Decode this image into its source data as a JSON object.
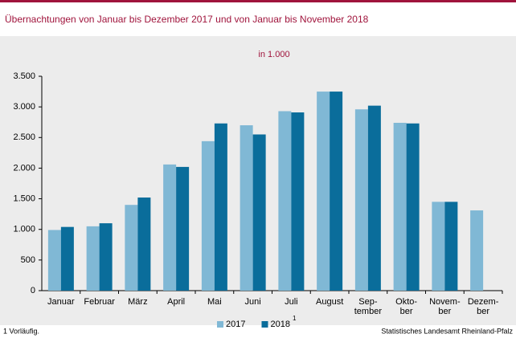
{
  "chart_data": {
    "type": "bar",
    "title": "Übernachtungen  von  Januar bis Dezember  2017  und von  Januar  bis November  2018",
    "subtitle": "in 1.000",
    "categories": [
      [
        "Januar"
      ],
      [
        "Februar"
      ],
      [
        "März"
      ],
      [
        "April"
      ],
      [
        "Mai"
      ],
      [
        "Juni"
      ],
      [
        "Juli"
      ],
      [
        "August"
      ],
      [
        "Sep-",
        "tember"
      ],
      [
        "Okto-",
        "ber"
      ],
      [
        "Novem-",
        "ber"
      ],
      [
        "Dezem-",
        "ber"
      ]
    ],
    "series": [
      {
        "name": "2017",
        "color": "#80b8d5",
        "values": [
          990,
          1050,
          1400,
          2060,
          2440,
          2700,
          2930,
          3250,
          2960,
          2740,
          1450,
          1310
        ]
      },
      {
        "name": "2018",
        "name_footnote": "1",
        "color": "#0a6d9b",
        "values": [
          1040,
          1100,
          1520,
          2020,
          2730,
          2550,
          2910,
          3250,
          3020,
          2730,
          1450,
          null
        ]
      }
    ],
    "ylim": [
      0,
      3500
    ],
    "yticks": [
      0,
      500,
      {
        "value": 1000,
        "label": "1.000"
      },
      {
        "value": 1500,
        "label": "1.500"
      },
      {
        "value": 2000,
        "label": "2.000"
      },
      {
        "value": 2500,
        "label": "2.500"
      },
      {
        "value": 3000,
        "label": "3.000"
      },
      {
        "value": 3500,
        "label": "3.500"
      }
    ],
    "footnote": "1 Vorläufig.",
    "source": "Statistisches Landesamt Rheinland-Pfalz"
  }
}
